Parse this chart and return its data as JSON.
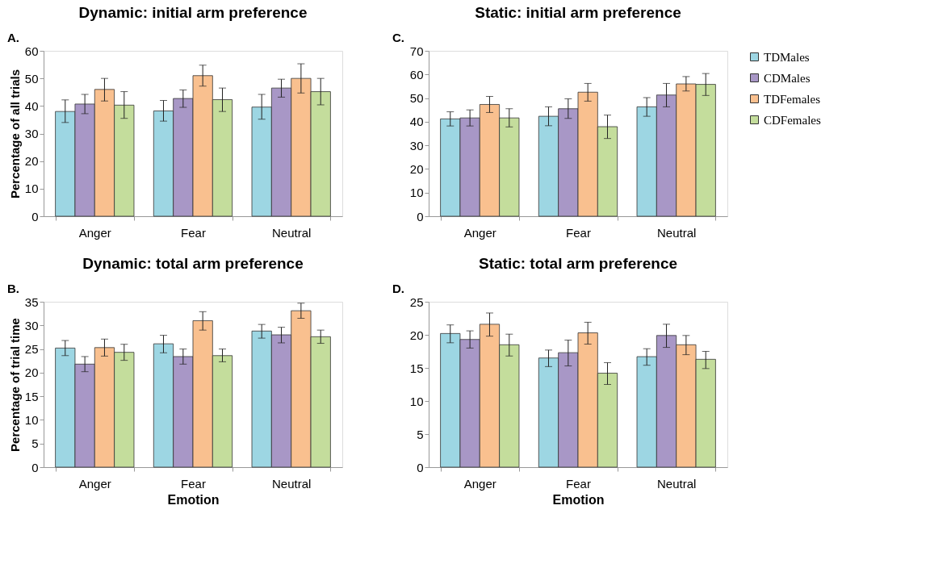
{
  "chart_data": [
    {
      "type": "bar",
      "title": "Dynamic: initial arm preference",
      "ylabel": "Percentage of all trials",
      "annotations": [
        "A."
      ],
      "categories": [
        "Anger",
        "Fear",
        "Neutral"
      ],
      "ylim": [
        0,
        60
      ],
      "yticks": [
        0,
        10,
        20,
        30,
        40,
        50,
        60
      ],
      "grid": false,
      "legend": "right",
      "series": [
        {
          "name": "TDMales",
          "color": "#9dd6e3",
          "values": [
            38,
            38.2,
            39.6
          ],
          "errors": [
            [
              34,
              42.2
            ],
            [
              34.5,
              42
            ],
            [
              35.2,
              44.2
            ]
          ]
        },
        {
          "name": "CDMales",
          "color": "#a897c6",
          "values": [
            40.7,
            42.7,
            46.5
          ],
          "errors": [
            [
              37.2,
              44.2
            ],
            [
              39.5,
              45.8
            ],
            [
              43.2,
              49.7
            ]
          ]
        },
        {
          "name": "TDFemales",
          "color": "#f9c08f",
          "values": [
            46,
            51,
            50
          ],
          "errors": [
            [
              41.8,
              50
            ],
            [
              47.2,
              54.8
            ],
            [
              44.7,
              55.3
            ]
          ]
        },
        {
          "name": "CDFemales",
          "color": "#c4dd9c",
          "values": [
            40.3,
            42.3,
            45.2
          ],
          "errors": [
            [
              35.5,
              45.2
            ],
            [
              38,
              46.5
            ],
            [
              40.4,
              50
            ]
          ]
        }
      ]
    },
    {
      "type": "bar",
      "title": "Static: initial arm preference",
      "annotations": [
        "C."
      ],
      "categories": [
        "Anger",
        "Fear",
        "Neutral"
      ],
      "ylim": [
        0,
        70
      ],
      "yticks": [
        0,
        10,
        20,
        30,
        40,
        50,
        60,
        70
      ],
      "grid": false,
      "legend": "right",
      "series": [
        {
          "name": "TDMales",
          "color": "#9dd6e3",
          "values": [
            41.2,
            42.3,
            46.3
          ],
          "errors": [
            [
              38.2,
              44.2
            ],
            [
              38.3,
              46.3
            ],
            [
              42.3,
              50.2
            ]
          ]
        },
        {
          "name": "CDMales",
          "color": "#a897c6",
          "values": [
            41.6,
            45.5,
            51.3
          ],
          "errors": [
            [
              38.2,
              45
            ],
            [
              41.4,
              49.7
            ],
            [
              46.3,
              56.2
            ]
          ]
        },
        {
          "name": "TDFemales",
          "color": "#f9c08f",
          "values": [
            47.3,
            52.5,
            56
          ],
          "errors": [
            [
              43.9,
              50.7
            ],
            [
              48.7,
              56.2
            ],
            [
              53,
              59.1
            ]
          ]
        },
        {
          "name": "CDFemales",
          "color": "#c4dd9c",
          "values": [
            41.6,
            37.9,
            55.8
          ],
          "errors": [
            [
              37.8,
              45.5
            ],
            [
              32.9,
              42.8
            ],
            [
              51.1,
              60.4
            ]
          ]
        }
      ]
    },
    {
      "type": "bar",
      "title": "Dynamic: total arm preference",
      "xlabel": "Emotion",
      "ylabel": "Percentage of trial time",
      "annotations": [
        "B."
      ],
      "categories": [
        "Anger",
        "Fear",
        "Neutral"
      ],
      "ylim": [
        0,
        35
      ],
      "yticks": [
        0,
        5,
        10,
        15,
        20,
        25,
        30,
        35
      ],
      "grid": false,
      "legend": "right",
      "series": [
        {
          "name": "TDMales",
          "color": "#9dd6e3",
          "values": [
            25.2,
            26.1,
            28.8
          ],
          "errors": [
            [
              23.6,
              26.8
            ],
            [
              24.2,
              27.9
            ],
            [
              27.3,
              30.2
            ]
          ]
        },
        {
          "name": "CDMales",
          "color": "#a897c6",
          "values": [
            21.8,
            23.4,
            28
          ],
          "errors": [
            [
              20.2,
              23.4
            ],
            [
              21.8,
              25
            ],
            [
              26.3,
              29.6
            ]
          ]
        },
        {
          "name": "TDFemales",
          "color": "#f9c08f",
          "values": [
            25.3,
            31,
            33.1
          ],
          "errors": [
            [
              23.5,
              27.1
            ],
            [
              29,
              32.9
            ],
            [
              31.5,
              34.7
            ]
          ]
        },
        {
          "name": "CDFemales",
          "color": "#c4dd9c",
          "values": [
            24.3,
            23.6,
            27.6
          ],
          "errors": [
            [
              22.6,
              26
            ],
            [
              22.3,
              25
            ],
            [
              26.2,
              29
            ]
          ]
        }
      ]
    },
    {
      "type": "bar",
      "title": "Static: total arm preference",
      "xlabel": "Emotion",
      "annotations": [
        "D."
      ],
      "categories": [
        "Anger",
        "Fear",
        "Neutral"
      ],
      "ylim": [
        0,
        25
      ],
      "yticks": [
        0,
        5,
        10,
        15,
        20,
        25
      ],
      "grid": false,
      "legend": "right",
      "series": [
        {
          "name": "TDMales",
          "color": "#9dd6e3",
          "values": [
            20.2,
            16.5,
            16.7
          ],
          "errors": [
            [
              18.8,
              21.5
            ],
            [
              15.2,
              17.7
            ],
            [
              15.4,
              17.9
            ]
          ]
        },
        {
          "name": "CDMales",
          "color": "#a897c6",
          "values": [
            19.3,
            17.3,
            19.9
          ],
          "errors": [
            [
              18,
              20.6
            ],
            [
              15.3,
              19.2
            ],
            [
              18.1,
              21.6
            ]
          ]
        },
        {
          "name": "TDFemales",
          "color": "#f9c08f",
          "values": [
            21.6,
            20.3,
            18.5
          ],
          "errors": [
            [
              19.8,
              23.3
            ],
            [
              18.6,
              21.9
            ],
            [
              17,
              19.9
            ]
          ]
        },
        {
          "name": "CDFemales",
          "color": "#c4dd9c",
          "values": [
            18.5,
            14.2,
            16.3
          ],
          "errors": [
            [
              16.8,
              20.1
            ],
            [
              12.5,
              15.8
            ],
            [
              14.9,
              17.5
            ]
          ]
        }
      ]
    }
  ]
}
